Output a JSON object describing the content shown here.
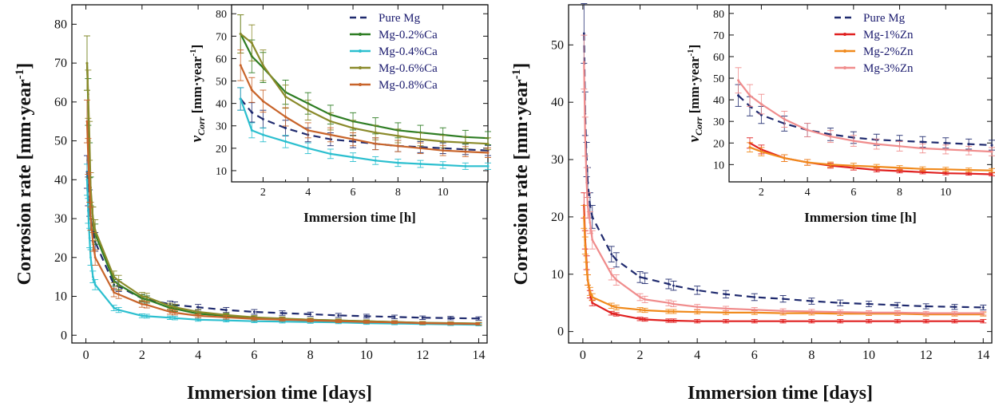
{
  "chart_data": [
    {
      "type": "line",
      "xlabel": "Immersion time [days]",
      "ylabel": "Corrosion rate [mm·year",
      "ylabel_sup": "-1",
      "ylabel_close": "]",
      "xlim": [
        -0.5,
        14.3
      ],
      "ylim": [
        -2,
        85
      ],
      "xticks": [
        "0",
        "2",
        "4",
        "6",
        "8",
        "10",
        "12",
        "14"
      ],
      "yticks": [
        "0",
        "10",
        "20",
        "30",
        "40",
        "50",
        "60",
        "70",
        "80"
      ],
      "xtick_values": [
        0,
        2,
        4,
        6,
        8,
        10,
        12,
        14
      ],
      "ytick_values": [
        0,
        10,
        20,
        30,
        40,
        50,
        60,
        70,
        80
      ],
      "x": [
        0.04,
        0.08,
        0.13,
        0.17,
        0.25,
        0.33,
        1,
        1.17,
        2,
        2.17,
        3,
        3.17,
        4,
        5,
        6,
        7,
        8,
        9,
        10,
        11,
        12,
        13,
        14
      ],
      "series": [
        {
          "name": "Pure Mg",
          "color": "#1f2a6e",
          "dash": true,
          "values": [
            42,
            37,
            34,
            30,
            27,
            24,
            13,
            12.5,
            9.5,
            9.2,
            8,
            7.8,
            7.2,
            6.5,
            6,
            5.7,
            5.4,
            5.1,
            4.9,
            4.7,
            4.5,
            4.4,
            4.3
          ]
        },
        {
          "name": "Mg-0.2%Ca",
          "color": "#2e7d23",
          "dash": false,
          "values": [
            70,
            60,
            45,
            37,
            30,
            26,
            14,
            13,
            9.5,
            9.2,
            7,
            6.8,
            5.5,
            5,
            4.5,
            4.2,
            4,
            3.8,
            3.6,
            3.4,
            3.2,
            3.1,
            3
          ]
        },
        {
          "name": "Mg-0.4%Ca",
          "color": "#2bbfcf",
          "dash": false,
          "values": [
            40,
            32,
            25,
            20,
            15,
            13,
            7,
            6.5,
            5,
            4.9,
            4.5,
            4.4,
            4,
            3.8,
            3.6,
            3.5,
            3.4,
            3.3,
            3.1,
            3,
            2.9,
            2.8,
            2.7
          ]
        },
        {
          "name": "Mg-0.6%Ca",
          "color": "#8a8a2a",
          "dash": false,
          "values": [
            70,
            62,
            50,
            38,
            30,
            27,
            15,
            14,
            10,
            9.8,
            7.5,
            7.2,
            6,
            5.2,
            4.6,
            4.3,
            4,
            3.8,
            3.6,
            3.4,
            3.2,
            3.1,
            3
          ]
        },
        {
          "name": "Mg-0.8%Ca",
          "color": "#c8642a",
          "dash": false,
          "values": [
            55,
            46,
            38,
            30,
            24,
            20,
            11,
            10.5,
            8,
            7.8,
            6,
            5.8,
            5,
            4.6,
            4.2,
            4,
            3.8,
            3.6,
            3.4,
            3.3,
            3.1,
            3,
            2.9
          ]
        }
      ],
      "inset": {
        "xlabel": "Immersion time [h]",
        "ylabel_v": "v",
        "ylabel_sub": "Corr",
        "ylabel_unit": "[mm·year",
        "ylabel_sup": "-1",
        "ylabel_close": "]",
        "xlim": [
          0.6,
          12
        ],
        "ylim": [
          5,
          84
        ],
        "xticks": [
          "2",
          "4",
          "6",
          "8",
          "10"
        ],
        "xtick_values": [
          2,
          4,
          6,
          8,
          10
        ],
        "yticks": [
          "10",
          "20",
          "30",
          "40",
          "50",
          "60",
          "70",
          "80"
        ],
        "ytick_values": [
          10,
          20,
          30,
          40,
          50,
          60,
          70,
          80
        ],
        "x": [
          1,
          1.5,
          2,
          3,
          4,
          5,
          6,
          7,
          8,
          9,
          10,
          11,
          12
        ],
        "series": [
          {
            "name": "Pure Mg",
            "values": [
              42,
              36,
              33,
              29,
              26,
              24,
              23,
              22,
              21,
              20.5,
              20,
              19.5,
              19
            ]
          },
          {
            "name": "Mg-0.2%Ca",
            "values": [
              71,
              61,
              56,
              45,
              40,
              35,
              32,
              30,
              28,
              27,
              26,
              25,
              24.5
            ]
          },
          {
            "name": "Mg-0.4%Ca",
            "values": [
              42,
              28,
              26,
              23,
              20,
              17.5,
              16,
              14.5,
              13.5,
              13,
              12.5,
              12,
              12
            ]
          },
          {
            "name": "Mg-0.6%Ca",
            "values": [
              71,
              67,
              57,
              43,
              37,
              32,
              29,
              27,
              25.5,
              24,
              23,
              22.5,
              22
            ]
          },
          {
            "name": "Mg-0.8%Ca",
            "values": [
              57,
              46,
              41,
              34,
              28,
              26,
              24,
              22,
              21,
              20,
              19,
              18.5,
              18
            ]
          }
        ]
      }
    },
    {
      "type": "line",
      "xlabel": "Immersion time [days]",
      "ylabel": "Corrosion rate [mm·year",
      "ylabel_sup": "-1",
      "ylabel_close": "]",
      "xlim": [
        -0.5,
        14.3
      ],
      "ylim": [
        -2,
        57
      ],
      "xticks": [
        "0",
        "2",
        "4",
        "6",
        "8",
        "10",
        "12",
        "14"
      ],
      "yticks": [
        "0",
        "10",
        "20",
        "30",
        "40",
        "50"
      ],
      "xtick_values": [
        0,
        2,
        4,
        6,
        8,
        10,
        12,
        14
      ],
      "ytick_values": [
        0,
        10,
        20,
        30,
        40,
        50
      ],
      "x": [
        0.04,
        0.08,
        0.13,
        0.17,
        0.25,
        0.33,
        1,
        1.17,
        2,
        2.17,
        3,
        3.17,
        4,
        5,
        6,
        7,
        8,
        9,
        10,
        11,
        12,
        13,
        14
      ],
      "series": [
        {
          "name": "Pure Mg",
          "color": "#1f2a6e",
          "dash": true,
          "values": [
            52,
            38,
            30,
            26,
            22,
            20,
            13.5,
            12.5,
            9.5,
            9.3,
            8.3,
            8,
            7.2,
            6.5,
            6,
            5.7,
            5.3,
            5,
            4.8,
            4.6,
            4.4,
            4.3,
            4.2
          ]
        },
        {
          "name": "Mg-1%Zn",
          "color": "#e02020",
          "dash": false,
          "values": [
            22,
            16,
            12,
            9,
            6.5,
            5,
            3.2,
            3,
            2.2,
            2.1,
            1.9,
            1.9,
            1.8,
            1.8,
            1.8,
            1.8,
            1.8,
            1.8,
            1.8,
            1.8,
            1.8,
            1.8,
            1.8
          ]
        },
        {
          "name": "Mg-2%Zn",
          "color": "#f08a1c",
          "dash": false,
          "values": [
            20,
            15,
            11,
            9,
            7,
            6,
            4.5,
            4.2,
            3.8,
            3.7,
            3.5,
            3.5,
            3.4,
            3.3,
            3.3,
            3.2,
            3.2,
            3.1,
            3.1,
            3.1,
            3,
            3,
            3
          ]
        },
        {
          "name": "Mg-3%Zn",
          "color": "#f08c8c",
          "dash": false,
          "values": [
            47,
            34,
            26,
            22,
            19,
            16,
            10,
            9,
            6,
            5.6,
            5,
            4.8,
            4.3,
            4,
            3.8,
            3.6,
            3.5,
            3.4,
            3.3,
            3.3,
            3.2,
            3.2,
            3.2
          ]
        }
      ],
      "inset": {
        "xlabel": "Immersion time [h]",
        "ylabel_v": "v",
        "ylabel_sub": "Corr",
        "ylabel_unit": "[mm·year",
        "ylabel_sup": "-1",
        "ylabel_close": "]",
        "xlim": [
          0.6,
          12
        ],
        "ylim": [
          2,
          84
        ],
        "xticks": [
          "2",
          "4",
          "6",
          "8",
          "10"
        ],
        "xtick_values": [
          2,
          4,
          6,
          8,
          10
        ],
        "yticks": [
          "10",
          "20",
          "30",
          "40",
          "50",
          "60",
          "70",
          "80"
        ],
        "ytick_values": [
          10,
          20,
          30,
          40,
          50,
          60,
          70,
          80
        ],
        "x": [
          1,
          1.5,
          2,
          3,
          4,
          5,
          6,
          7,
          8,
          9,
          10,
          11,
          12
        ],
        "series": [
          {
            "name": "Pure Mg",
            "values": [
              42,
              37,
              33,
              29,
              26,
              24,
              22.5,
              21.5,
              21,
              20.5,
              20,
              19.5,
              19
            ]
          },
          {
            "name": "Mg-1%Zn",
            "values": [
              null,
              20,
              17,
              13,
              11,
              9.5,
              8.5,
              7.5,
              7,
              6.5,
              6,
              5.8,
              5.5
            ]
          },
          {
            "name": "Mg-2%Zn",
            "values": [
              null,
              18,
              16,
              13,
              11,
              10,
              9.5,
              9,
              8.5,
              8,
              7.8,
              7.5,
              7.3
            ]
          },
          {
            "name": "Mg-3%Zn",
            "values": [
              49,
              42,
              38,
              31,
              26,
              23,
              21,
              19.5,
              18.5,
              17.5,
              17,
              16.5,
              16
            ]
          }
        ]
      }
    }
  ]
}
